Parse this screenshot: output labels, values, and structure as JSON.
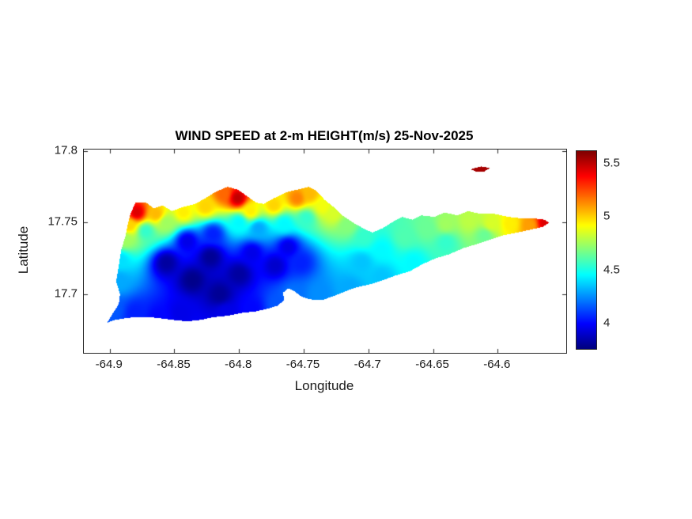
{
  "chart_data": {
    "type": "heatmap",
    "title": "WIND SPEED at 2-m HEIGHT(m/s) 25-Nov-2025",
    "xlabel": "Longitude",
    "ylabel": "Latitude",
    "xlim": [
      -64.92,
      -64.547
    ],
    "ylim": [
      17.659,
      17.801
    ],
    "xticks": [
      -64.9,
      -64.85,
      -64.8,
      -64.75,
      -64.7,
      -64.65,
      -64.6
    ],
    "xtick_labels": [
      "-64.9",
      "-64.85",
      "-64.8",
      "-64.75",
      "-64.7",
      "-64.65",
      "-64.6"
    ],
    "yticks": [
      17.7,
      17.75,
      17.8
    ],
    "ytick_labels": [
      "17.7",
      "17.75",
      "17.8"
    ],
    "colormap": "jet",
    "vmin": 3.76,
    "vmax": 5.62,
    "colorbar_ticks": [
      4,
      4.5,
      5,
      5.5
    ],
    "colorbar_tick_labels": [
      "4",
      "4.5",
      "5",
      "5.5"
    ],
    "legend_position": "right-colorbar",
    "grid": false,
    "islands": [
      {
        "name": "st-croix",
        "outline": [
          [
            -64.902,
            17.68
          ],
          [
            -64.898,
            17.686
          ],
          [
            -64.893,
            17.693
          ],
          [
            -64.892,
            17.7
          ],
          [
            -64.895,
            17.709
          ],
          [
            -64.893,
            17.72
          ],
          [
            -64.891,
            17.731
          ],
          [
            -64.888,
            17.74
          ],
          [
            -64.886,
            17.749
          ],
          [
            -64.884,
            17.756
          ],
          [
            -64.88,
            17.764
          ],
          [
            -64.872,
            17.764
          ],
          [
            -64.866,
            17.76
          ],
          [
            -64.859,
            17.762
          ],
          [
            -64.852,
            17.758
          ],
          [
            -64.843,
            17.761
          ],
          [
            -64.834,
            17.763
          ],
          [
            -64.826,
            17.767
          ],
          [
            -64.819,
            17.771
          ],
          [
            -64.809,
            17.775
          ],
          [
            -64.801,
            17.773
          ],
          [
            -64.793,
            17.768
          ],
          [
            -64.787,
            17.764
          ],
          [
            -64.781,
            17.763
          ],
          [
            -64.773,
            17.767
          ],
          [
            -64.764,
            17.771
          ],
          [
            -64.755,
            17.773
          ],
          [
            -64.746,
            17.775
          ],
          [
            -64.74,
            17.772
          ],
          [
            -64.734,
            17.766
          ],
          [
            -64.727,
            17.761
          ],
          [
            -64.72,
            17.755
          ],
          [
            -64.712,
            17.75
          ],
          [
            -64.704,
            17.746
          ],
          [
            -64.697,
            17.743
          ],
          [
            -64.689,
            17.746
          ],
          [
            -64.682,
            17.75
          ],
          [
            -64.674,
            17.754
          ],
          [
            -64.666,
            17.752
          ],
          [
            -64.659,
            17.755
          ],
          [
            -64.649,
            17.754
          ],
          [
            -64.641,
            17.757
          ],
          [
            -64.631,
            17.755
          ],
          [
            -64.623,
            17.758
          ],
          [
            -64.613,
            17.756
          ],
          [
            -64.602,
            17.756
          ],
          [
            -64.592,
            17.754
          ],
          [
            -64.582,
            17.753
          ],
          [
            -64.573,
            17.753
          ],
          [
            -64.564,
            17.752
          ],
          [
            -64.56,
            17.75
          ],
          [
            -64.565,
            17.747
          ],
          [
            -64.575,
            17.745
          ],
          [
            -64.585,
            17.743
          ],
          [
            -64.596,
            17.741
          ],
          [
            -64.606,
            17.738
          ],
          [
            -64.616,
            17.735
          ],
          [
            -64.627,
            17.732
          ],
          [
            -64.637,
            17.728
          ],
          [
            -64.648,
            17.725
          ],
          [
            -64.658,
            17.721
          ],
          [
            -64.668,
            17.716
          ],
          [
            -64.679,
            17.713
          ],
          [
            -64.688,
            17.71
          ],
          [
            -64.698,
            17.707
          ],
          [
            -64.708,
            17.705
          ],
          [
            -64.715,
            17.703
          ],
          [
            -64.723,
            17.7
          ],
          [
            -64.729,
            17.698
          ],
          [
            -64.735,
            17.696
          ],
          [
            -64.742,
            17.696
          ],
          [
            -64.748,
            17.697
          ],
          [
            -64.753,
            17.699
          ],
          [
            -64.757,
            17.702
          ],
          [
            -64.762,
            17.704
          ],
          [
            -64.766,
            17.701
          ],
          [
            -64.765,
            17.696
          ],
          [
            -64.77,
            17.692
          ],
          [
            -64.777,
            17.69
          ],
          [
            -64.787,
            17.688
          ],
          [
            -64.797,
            17.687
          ],
          [
            -64.808,
            17.685
          ],
          [
            -64.819,
            17.684
          ],
          [
            -64.83,
            17.682
          ],
          [
            -64.84,
            17.681
          ],
          [
            -64.851,
            17.682
          ],
          [
            -64.86,
            17.683
          ],
          [
            -64.87,
            17.684
          ],
          [
            -64.88,
            17.684
          ],
          [
            -64.889,
            17.683
          ],
          [
            -64.896,
            17.682
          ]
        ],
        "samples": [
          [
            -64.879,
            17.757,
            5.45
          ],
          [
            -64.864,
            17.756,
            5.05
          ],
          [
            -64.885,
            17.748,
            5.0
          ],
          [
            -64.888,
            17.738,
            4.75
          ],
          [
            -64.892,
            17.724,
            4.4
          ],
          [
            -64.893,
            17.709,
            4.3
          ],
          [
            -64.897,
            17.69,
            4.15
          ],
          [
            -64.88,
            17.687,
            4.05
          ],
          [
            -64.862,
            17.684,
            4.0
          ],
          [
            -64.845,
            17.687,
            3.95
          ],
          [
            -64.872,
            17.744,
            4.55
          ],
          [
            -64.856,
            17.75,
            4.75
          ],
          [
            -64.843,
            17.757,
            4.95
          ],
          [
            -64.856,
            17.722,
            3.82
          ],
          [
            -64.836,
            17.71,
            3.78
          ],
          [
            -64.815,
            17.7,
            3.8
          ],
          [
            -64.822,
            17.726,
            3.8
          ],
          [
            -64.8,
            17.714,
            3.82
          ],
          [
            -64.84,
            17.737,
            3.95
          ],
          [
            -64.82,
            17.742,
            4.05
          ],
          [
            -64.79,
            17.729,
            3.95
          ],
          [
            -64.772,
            17.72,
            3.9
          ],
          [
            -64.762,
            17.733,
            3.95
          ],
          [
            -64.752,
            17.722,
            4.05
          ],
          [
            -64.801,
            17.767,
            5.5
          ],
          [
            -64.812,
            17.77,
            5.2
          ],
          [
            -64.826,
            17.761,
            5.0
          ],
          [
            -64.791,
            17.758,
            4.95
          ],
          [
            -64.773,
            17.762,
            5.0
          ],
          [
            -64.755,
            17.767,
            5.15
          ],
          [
            -64.745,
            17.77,
            5.05
          ],
          [
            -64.735,
            17.761,
            4.9
          ],
          [
            -64.8,
            17.75,
            4.45
          ],
          [
            -64.785,
            17.746,
            4.3
          ],
          [
            -64.765,
            17.749,
            4.45
          ],
          [
            -64.748,
            17.753,
            4.55
          ],
          [
            -64.727,
            17.756,
            4.85
          ],
          [
            -64.716,
            17.748,
            4.7
          ],
          [
            -64.703,
            17.74,
            4.55
          ],
          [
            -64.705,
            17.722,
            4.35
          ],
          [
            -64.69,
            17.731,
            4.45
          ],
          [
            -64.672,
            17.74,
            4.6
          ],
          [
            -64.655,
            17.746,
            4.65
          ],
          [
            -64.64,
            17.749,
            4.75
          ],
          [
            -64.622,
            17.751,
            4.8
          ],
          [
            -64.605,
            17.749,
            4.85
          ],
          [
            -64.59,
            17.749,
            4.95
          ],
          [
            -64.575,
            17.748,
            5.1
          ],
          [
            -64.563,
            17.75,
            5.45
          ],
          [
            -64.64,
            17.736,
            4.55
          ],
          [
            -64.61,
            17.741,
            4.65
          ],
          [
            -64.665,
            17.722,
            4.45
          ],
          [
            -64.69,
            17.712,
            4.35
          ],
          [
            -64.714,
            17.704,
            4.3
          ],
          [
            -64.738,
            17.7,
            4.25
          ],
          [
            -64.758,
            17.7,
            4.2
          ],
          [
            -64.77,
            17.693,
            4.15
          ],
          [
            -64.79,
            17.69,
            4.0
          ],
          [
            -64.81,
            17.687,
            3.95
          ]
        ]
      },
      {
        "name": "buck-island",
        "outline": [
          [
            -64.621,
            17.7872
          ],
          [
            -64.613,
            17.7892
          ],
          [
            -64.606,
            17.7882
          ],
          [
            -64.61,
            17.7858
          ],
          [
            -64.617,
            17.7858
          ]
        ],
        "samples": [
          [
            -64.612,
            17.7875,
            5.55
          ]
        ]
      }
    ]
  }
}
